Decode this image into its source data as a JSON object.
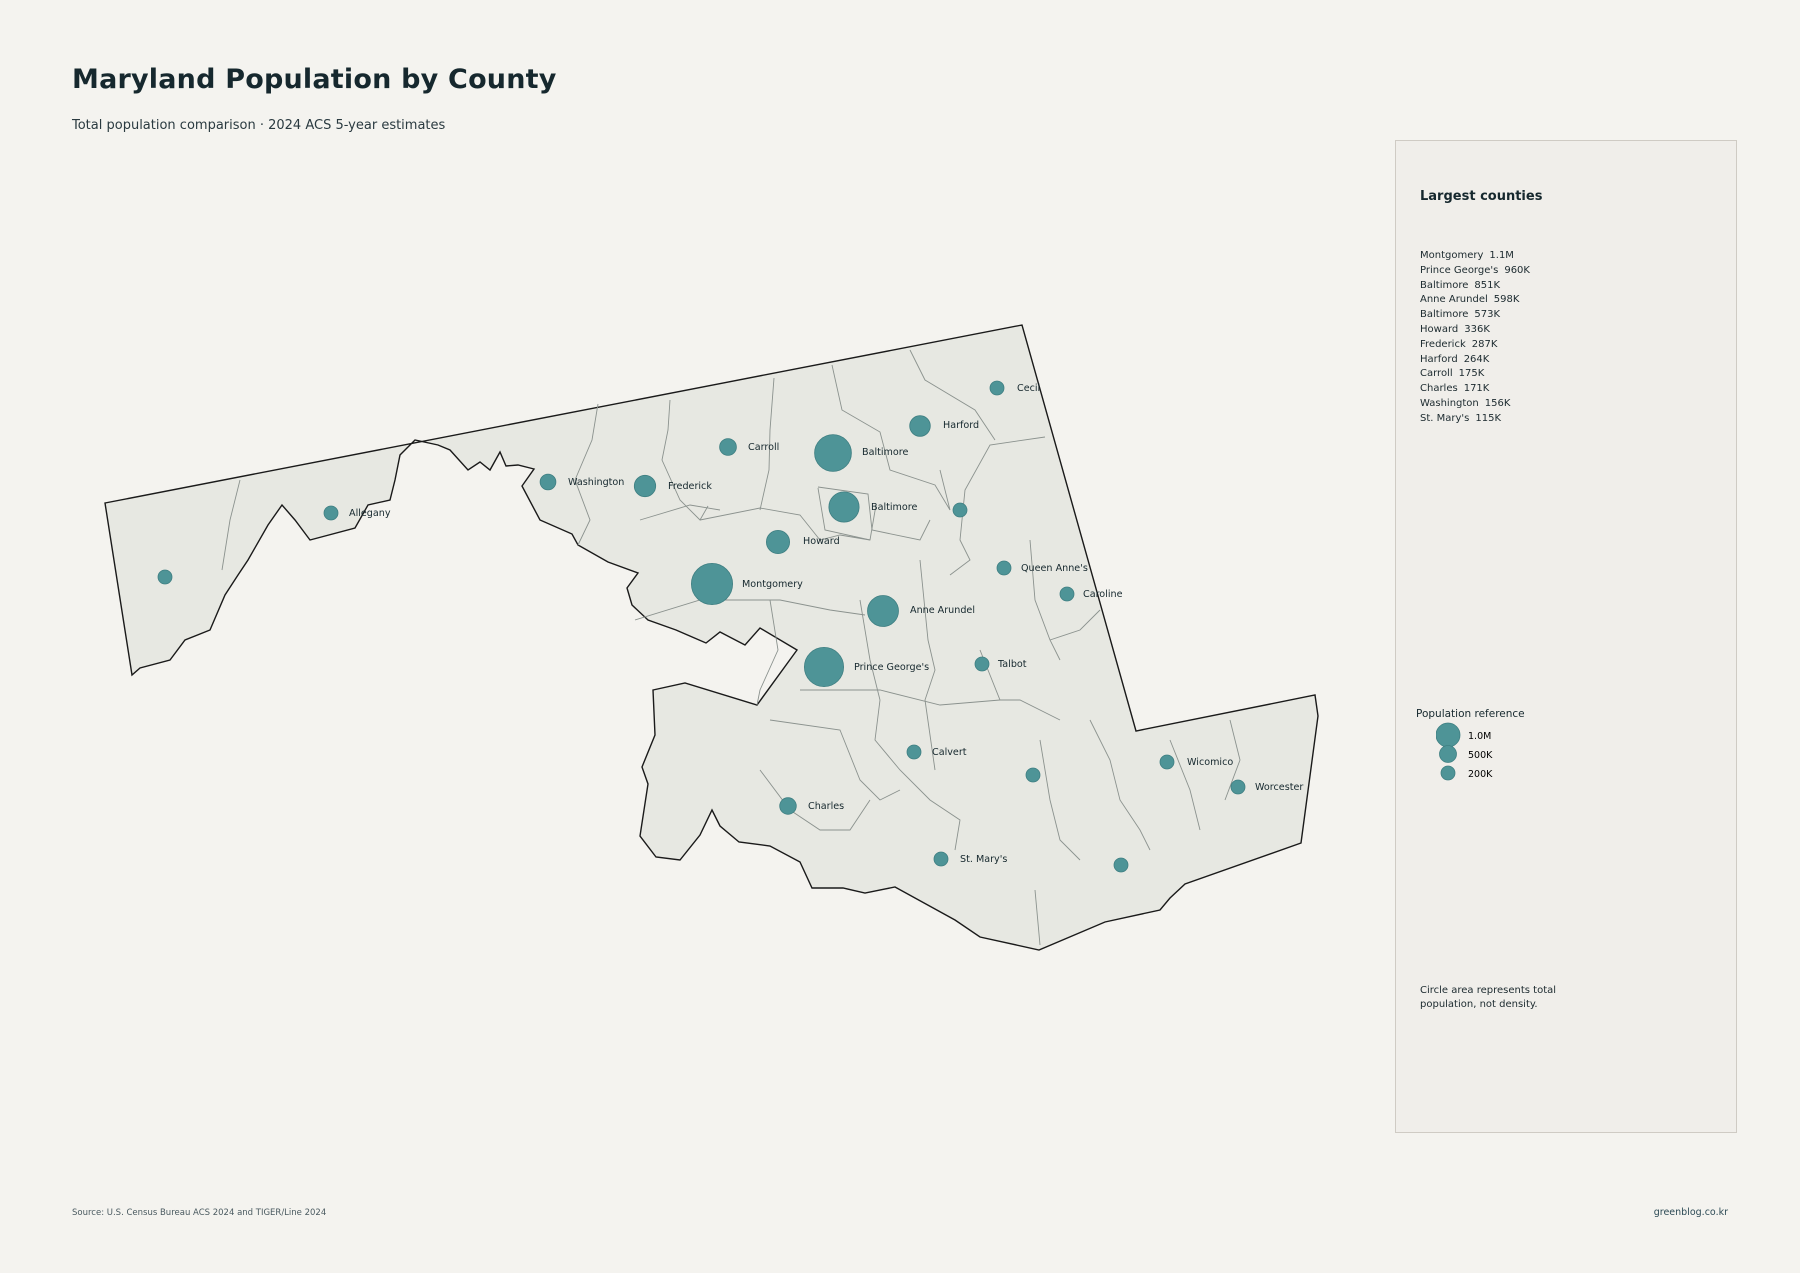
{
  "title": "Maryland Population by County",
  "subtitle": "Total population comparison · 2024 ACS 5-year estimates",
  "panel": {
    "title": "Largest counties",
    "ranking": [
      {
        "name": "Montgomery",
        "pop": "1.1M"
      },
      {
        "name": "Prince George's",
        "pop": "960K"
      },
      {
        "name": "Baltimore",
        "pop": "851K"
      },
      {
        "name": "Anne Arundel",
        "pop": "598K"
      },
      {
        "name": "Baltimore",
        "pop": "573K"
      },
      {
        "name": "Howard",
        "pop": "336K"
      },
      {
        "name": "Frederick",
        "pop": "287K"
      },
      {
        "name": "Harford",
        "pop": "264K"
      },
      {
        "name": "Carroll",
        "pop": "175K"
      },
      {
        "name": "Charles",
        "pop": "171K"
      },
      {
        "name": "Washington",
        "pop": "156K"
      },
      {
        "name": "St. Mary's",
        "pop": "115K"
      }
    ],
    "reference_title": "Population reference",
    "reference": [
      {
        "label": "1.0M",
        "value": 1000000
      },
      {
        "label": "500K",
        "value": 500000
      },
      {
        "label": "200K",
        "value": 200000
      }
    ],
    "note": "Circle area represents total population, not density."
  },
  "source": "Source: U.S. Census Bureau ACS 2024 and TIGER/Line 2024",
  "credit": "greenblog.co.kr",
  "colors": {
    "bubble": "#4e9497",
    "land": "#e7e8e2",
    "border": "#1a1a1a",
    "county_line": "#8b928e",
    "background": "#f4f3ef"
  },
  "counties": [
    {
      "name": "",
      "population": 68000
    },
    {
      "name": "Allegany",
      "population": 68000
    },
    {
      "name": "Washington",
      "population": 156000
    },
    {
      "name": "Frederick",
      "population": 287000
    },
    {
      "name": "Carroll",
      "population": 175000
    },
    {
      "name": "Baltimore",
      "population": 851000
    },
    {
      "name": "Baltimore",
      "population": 573000
    },
    {
      "name": "Harford",
      "population": 264000
    },
    {
      "name": "Cecil",
      "population": 104000
    },
    {
      "name": "Howard",
      "population": 336000
    },
    {
      "name": "Montgomery",
      "population": 1060000
    },
    {
      "name": "Anne Arundel",
      "population": 598000
    },
    {
      "name": "Prince George's",
      "population": 960000
    },
    {
      "name": "",
      "population": 20000
    },
    {
      "name": "Queen Anne's",
      "population": 51000
    },
    {
      "name": "Caroline",
      "population": 33000
    },
    {
      "name": "Talbot",
      "population": 38000
    },
    {
      "name": "Calvert",
      "population": 94000
    },
    {
      "name": "Charles",
      "population": 171000
    },
    {
      "name": "St. Mary's",
      "population": 115000
    },
    {
      "name": "",
      "population": 32000
    },
    {
      "name": "Wicomico",
      "population": 104000
    },
    {
      "name": "Worcester",
      "population": 53000
    },
    {
      "name": "",
      "population": 25000
    }
  ]
}
